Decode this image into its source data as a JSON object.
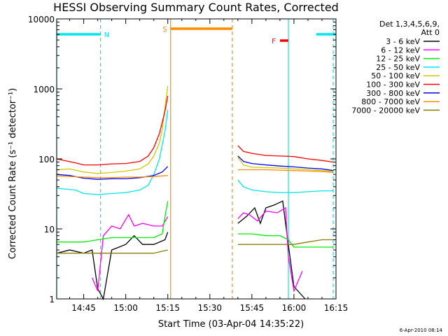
{
  "chart_data": {
    "type": "line",
    "title": "HESSI Observing Summary Count Rates, Corrected",
    "xlabel": "Start Time (03-Apr-04 14:35:22)",
    "ylabel": "Corrected Count Rate (s⁻¹ detector⁻¹)",
    "yscale": "log",
    "ylim": [
      1,
      10000
    ],
    "xlim": [
      "14:35:22",
      "16:15"
    ],
    "x_ticks": [
      "14:45",
      "15:00",
      "15:15",
      "15:30",
      "15:45",
      "16:00",
      "16:15"
    ],
    "y_ticks": [
      "1",
      "10",
      "100",
      "1000",
      "10000"
    ],
    "grid": false,
    "legend_header": [
      "Det 1,3,4,5,6,9,",
      "Att 0"
    ],
    "legend_position": "right",
    "timestamp": "6-Apr-2010 08:14",
    "flags": [
      {
        "label": "N",
        "color": "#00e5ee",
        "intervals": [
          [
            "14:35:22",
            "14:51"
          ],
          [
            "16:08",
            "16:15"
          ]
        ]
      },
      {
        "label": "S",
        "color": "#ff8c00",
        "intervals": [
          [
            "15:16",
            "15:38"
          ]
        ]
      },
      {
        "label": "F",
        "color": "#ff0000",
        "intervals": [
          [
            "15:55",
            "15:58"
          ]
        ]
      }
    ],
    "vlines": [
      {
        "x": "14:35:22",
        "color": "#00e5ee",
        "style": "solid"
      },
      {
        "x": "14:51",
        "color": "#00e5ee",
        "style": "dashed"
      },
      {
        "x": "15:16",
        "color": "#ff8c00",
        "style": "solid"
      },
      {
        "x": "15:38",
        "color": "#ff8c00",
        "style": "dashed"
      },
      {
        "x": "15:58",
        "color": "#00e5ee",
        "style": "solid"
      },
      {
        "x": "16:14",
        "color": "#00e5ee",
        "style": "dashed"
      }
    ],
    "series": [
      {
        "name": "3 - 6 keV",
        "color": "#000000",
        "segments": [
          [
            [
              "14:35:22",
              4.5
            ],
            [
              "14:40",
              5
            ],
            [
              "14:45",
              4.5
            ],
            [
              "14:48",
              5
            ],
            [
              "14:50",
              1.4
            ],
            [
              "14:52",
              1
            ],
            [
              "14:55",
              5
            ],
            [
              "15:00",
              6
            ],
            [
              "15:03",
              8
            ],
            [
              "15:06",
              6
            ],
            [
              "15:10",
              6
            ],
            [
              "15:14",
              7
            ],
            [
              "15:15",
              9
            ]
          ],
          [
            [
              "15:40",
              12
            ],
            [
              "15:43",
              15
            ],
            [
              "15:46",
              20
            ],
            [
              "15:48",
              12
            ],
            [
              "15:50",
              20
            ],
            [
              "15:53",
              22
            ],
            [
              "15:56",
              25
            ],
            [
              "15:57",
              12
            ],
            [
              "15:58",
              6
            ],
            [
              "16:00",
              1.5
            ],
            [
              "16:04",
              1
            ]
          ]
        ]
      },
      {
        "name": "6 - 12 keV",
        "color": "#ff00ff",
        "segments": [
          [
            [
              "14:48",
              2
            ],
            [
              "14:50",
              1.3
            ],
            [
              "14:52",
              8
            ],
            [
              "14:55",
              11
            ],
            [
              "14:58",
              10
            ],
            [
              "15:01",
              16
            ],
            [
              "15:03",
              11
            ],
            [
              "15:06",
              12
            ],
            [
              "15:10",
              11
            ],
            [
              "15:13",
              11
            ],
            [
              "15:15",
              15
            ]
          ],
          [
            [
              "15:40",
              14
            ],
            [
              "15:42",
              17
            ],
            [
              "15:44",
              16
            ],
            [
              "15:47",
              13
            ],
            [
              "15:50",
              18
            ],
            [
              "15:54",
              17
            ],
            [
              "15:57",
              20
            ],
            [
              "15:58",
              4
            ],
            [
              "16:00",
              1.3
            ],
            [
              "16:03",
              2.5
            ]
          ]
        ]
      },
      {
        "name": "12 - 25 keV",
        "color": "#00ee00",
        "segments": [
          [
            [
              "14:35:22",
              6.5
            ],
            [
              "14:45",
              6.5
            ],
            [
              "14:50",
              7
            ],
            [
              "14:55",
              7.5
            ],
            [
              "15:00",
              7.5
            ],
            [
              "15:05",
              7.5
            ],
            [
              "15:10",
              7.5
            ],
            [
              "15:13",
              8.5
            ],
            [
              "15:14",
              15
            ],
            [
              "15:15",
              25
            ]
          ],
          [
            [
              "15:40",
              8.5
            ],
            [
              "15:45",
              8.5
            ],
            [
              "15:50",
              8
            ],
            [
              "15:55",
              8
            ],
            [
              "15:58",
              7
            ],
            [
              "16:00",
              5.5
            ],
            [
              "16:05",
              5.5
            ],
            [
              "16:10",
              5.5
            ],
            [
              "16:14",
              5.5
            ]
          ]
        ]
      },
      {
        "name": "25 - 50 keV",
        "color": "#00e5ee",
        "segments": [
          [
            [
              "14:35:22",
              38
            ],
            [
              "14:42",
              36
            ],
            [
              "14:45",
              32
            ],
            [
              "14:50",
              31
            ],
            [
              "14:55",
              32
            ],
            [
              "15:00",
              33
            ],
            [
              "15:05",
              36
            ],
            [
              "15:08",
              42
            ],
            [
              "15:10",
              60
            ],
            [
              "15:12",
              100
            ],
            [
              "15:14",
              250
            ],
            [
              "15:15",
              500
            ]
          ],
          [
            [
              "15:40",
              50
            ],
            [
              "15:42",
              40
            ],
            [
              "15:45",
              36
            ],
            [
              "15:50",
              34
            ],
            [
              "15:55",
              33
            ],
            [
              "16:00",
              33
            ],
            [
              "16:05",
              34
            ],
            [
              "16:10",
              35
            ],
            [
              "16:14",
              35
            ]
          ]
        ]
      },
      {
        "name": "50 - 100 keV",
        "color": "#d2c800",
        "segments": [
          [
            [
              "14:35:22",
              70
            ],
            [
              "14:40",
              72
            ],
            [
              "14:45",
              65
            ],
            [
              "14:50",
              62
            ],
            [
              "14:55",
              64
            ],
            [
              "15:00",
              67
            ],
            [
              "15:05",
              72
            ],
            [
              "15:08",
              85
            ],
            [
              "15:10",
              110
            ],
            [
              "15:12",
              170
            ],
            [
              "15:13",
              260
            ],
            [
              "15:14",
              550
            ],
            [
              "15:15",
              1100
            ]
          ],
          [
            [
              "15:40",
              105
            ],
            [
              "15:42",
              82
            ],
            [
              "15:45",
              76
            ],
            [
              "15:50",
              75
            ],
            [
              "15:55",
              74
            ],
            [
              "16:00",
              72
            ],
            [
              "16:05",
              70
            ],
            [
              "16:10",
              68
            ],
            [
              "16:14",
              66
            ]
          ]
        ]
      },
      {
        "name": "100 - 300 keV",
        "color": "#ff0000",
        "segments": [
          [
            [
              "14:35:22",
              100
            ],
            [
              "14:38",
              95
            ],
            [
              "14:42",
              88
            ],
            [
              "14:45",
              82
            ],
            [
              "14:50",
              82
            ],
            [
              "14:55",
              85
            ],
            [
              "15:00",
              86
            ],
            [
              "15:05",
              92
            ],
            [
              "15:08",
              110
            ],
            [
              "15:10",
              145
            ],
            [
              "15:12",
              230
            ],
            [
              "15:14",
              480
            ],
            [
              "15:15",
              800
            ]
          ],
          [
            [
              "15:40",
              155
            ],
            [
              "15:42",
              128
            ],
            [
              "15:45",
              120
            ],
            [
              "15:50",
              112
            ],
            [
              "15:55",
              110
            ],
            [
              "16:00",
              108
            ],
            [
              "16:05",
              100
            ],
            [
              "16:10",
              95
            ],
            [
              "16:14",
              90
            ]
          ]
        ]
      },
      {
        "name": "300 - 800 keV",
        "color": "#0000ff",
        "segments": [
          [
            [
              "14:35:22",
              60
            ],
            [
              "14:40",
              58
            ],
            [
              "14:45",
              53
            ],
            [
              "14:50",
              51
            ],
            [
              "14:55",
              52
            ],
            [
              "15:00",
              52
            ],
            [
              "15:05",
              54
            ],
            [
              "15:10",
              58
            ],
            [
              "15:13",
              65
            ],
            [
              "15:15",
              78
            ]
          ],
          [
            [
              "15:40",
              110
            ],
            [
              "15:42",
              92
            ],
            [
              "15:45",
              86
            ],
            [
              "15:50",
              82
            ],
            [
              "15:55",
              79
            ],
            [
              "16:00",
              77
            ],
            [
              "16:05",
              74
            ],
            [
              "16:10",
              72
            ],
            [
              "16:14",
              68
            ]
          ]
        ]
      },
      {
        "name": "800 - 7000 keV",
        "color": "#ff8c00",
        "segments": [
          [
            [
              "14:35:22",
              57
            ],
            [
              "14:45",
              55
            ],
            [
              "14:50",
              54
            ],
            [
              "14:55",
              54
            ],
            [
              "15:00",
              55
            ],
            [
              "15:05",
              55
            ],
            [
              "15:10",
              56
            ],
            [
              "15:15",
              58
            ]
          ],
          [
            [
              "15:40",
              70
            ],
            [
              "15:45",
              70
            ],
            [
              "15:50",
              70
            ],
            [
              "15:55",
              69
            ],
            [
              "16:00",
              68
            ],
            [
              "16:05",
              67
            ],
            [
              "16:10",
              66
            ],
            [
              "16:14",
              64
            ]
          ]
        ]
      },
      {
        "name": "7000 - 20000 keV",
        "color": "#8b7d00",
        "segments": [
          [
            [
              "14:35:22",
              4.5
            ],
            [
              "14:40",
              4.5
            ],
            [
              "14:45",
              4.5
            ],
            [
              "14:50",
              4.5
            ],
            [
              "14:55",
              4.5
            ],
            [
              "15:00",
              4.5
            ],
            [
              "15:05",
              4.5
            ],
            [
              "15:10",
              4.5
            ],
            [
              "15:15",
              5
            ]
          ],
          [
            [
              "15:40",
              6
            ],
            [
              "15:45",
              6
            ],
            [
              "15:50",
              6
            ],
            [
              "15:55",
              6
            ],
            [
              "16:00",
              6
            ],
            [
              "16:05",
              6.5
            ],
            [
              "16:10",
              7
            ],
            [
              "16:14",
              7
            ]
          ]
        ]
      }
    ]
  }
}
